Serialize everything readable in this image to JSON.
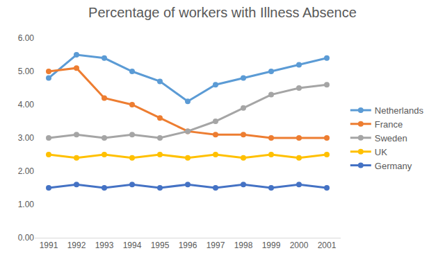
{
  "chart_data": {
    "type": "line",
    "title": "Percentage of workers with Illness Absence",
    "categories": [
      "1991",
      "1992",
      "1993",
      "1994",
      "1995",
      "1996",
      "1997",
      "1998",
      "1999",
      "2000",
      "2001"
    ],
    "series": [
      {
        "name": "Netherlands",
        "color": "#5b9bd5",
        "values": [
          4.8,
          5.5,
          5.4,
          5.0,
          4.7,
          4.1,
          4.6,
          4.8,
          5.0,
          5.2,
          5.4
        ]
      },
      {
        "name": "France",
        "color": "#ed7d31",
        "values": [
          5.0,
          5.1,
          4.2,
          4.0,
          3.6,
          3.2,
          3.1,
          3.1,
          3.0,
          3.0,
          3.0
        ]
      },
      {
        "name": "Sweden",
        "color": "#a5a5a5",
        "values": [
          3.0,
          3.1,
          3.0,
          3.1,
          3.0,
          3.2,
          3.5,
          3.9,
          4.3,
          4.5,
          4.6
        ]
      },
      {
        "name": "UK",
        "color": "#ffc000",
        "values": [
          2.5,
          2.4,
          2.5,
          2.4,
          2.5,
          2.4,
          2.5,
          2.4,
          2.5,
          2.4,
          2.5
        ]
      },
      {
        "name": "Germany",
        "color": "#4472c4",
        "values": [
          1.5,
          1.6,
          1.5,
          1.6,
          1.5,
          1.6,
          1.5,
          1.6,
          1.5,
          1.6,
          1.5
        ]
      }
    ],
    "ylim": [
      0,
      6
    ],
    "yticks": [
      {
        "value": 0,
        "label": "0.00"
      },
      {
        "value": 1,
        "label": "1.00"
      },
      {
        "value": 2,
        "label": "2.00"
      },
      {
        "value": 3,
        "label": "3.00"
      },
      {
        "value": 4,
        "label": "4.00"
      },
      {
        "value": 5,
        "label": "5.00"
      },
      {
        "value": 6,
        "label": "6.00"
      }
    ],
    "grid": false,
    "legend": "right",
    "marker": "circle",
    "line_style": "solid"
  }
}
